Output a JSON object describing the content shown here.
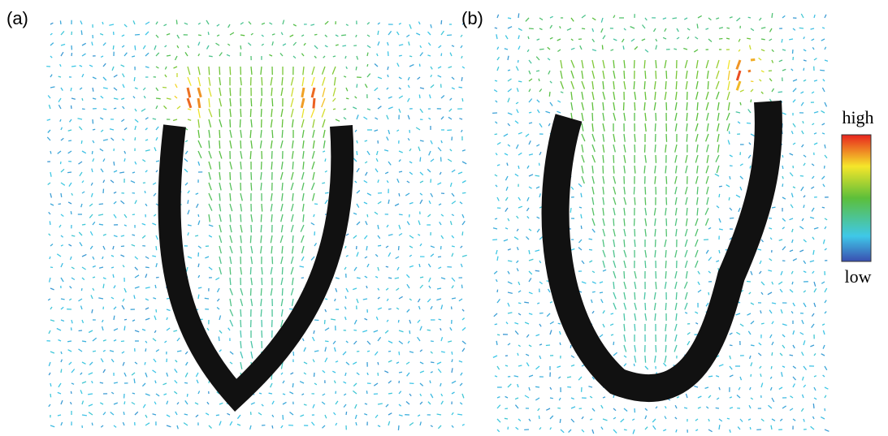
{
  "panels": [
    {
      "label": "(a)"
    },
    {
      "label": "(b)"
    }
  ],
  "colorbar": {
    "high": "high",
    "low": "low"
  }
}
